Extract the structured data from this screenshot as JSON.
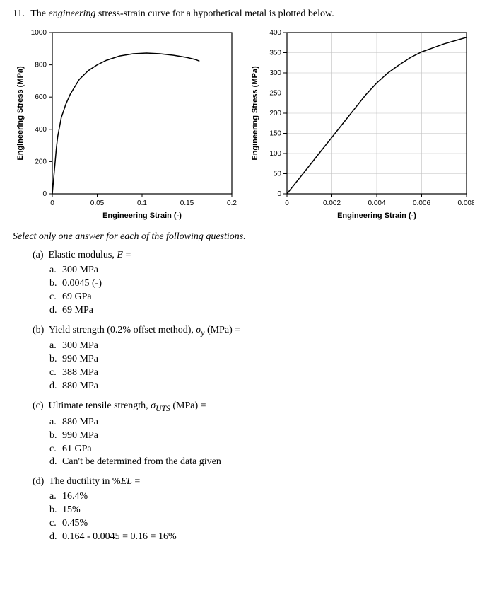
{
  "prompt": {
    "number": "11.",
    "pre": "The ",
    "emph": "engineering",
    "post": " stress-strain curve for a hypothetical metal is plotted below."
  },
  "instruction": "Select only one answer for each of the following questions.",
  "chart_left": {
    "type": "line",
    "x_label": "Engineering Strain (-)",
    "y_label": "Engineering Stress (MPa)",
    "x_ticks": [
      "0",
      "0.05",
      "0.1",
      "0.15",
      "0.2"
    ],
    "y_ticks": [
      "0",
      "200",
      "400",
      "600",
      "800",
      "1000"
    ],
    "xlim": [
      0,
      0.2
    ],
    "ylim": [
      0,
      1100
    ],
    "line_color": "#000000",
    "line_width": 1.5,
    "background_color": "#ffffff",
    "border_color": "#000000",
    "tick_font_size": 10,
    "label_font_size": 11,
    "data_points": [
      [
        0.0,
        0
      ],
      [
        0.0045,
        310
      ],
      [
        0.006,
        390
      ],
      [
        0.01,
        520
      ],
      [
        0.015,
        610
      ],
      [
        0.02,
        680
      ],
      [
        0.03,
        780
      ],
      [
        0.04,
        840
      ],
      [
        0.05,
        880
      ],
      [
        0.06,
        910
      ],
      [
        0.075,
        940
      ],
      [
        0.09,
        955
      ],
      [
        0.105,
        960
      ],
      [
        0.12,
        955
      ],
      [
        0.135,
        945
      ],
      [
        0.15,
        930
      ],
      [
        0.16,
        915
      ],
      [
        0.164,
        905
      ]
    ]
  },
  "chart_right": {
    "type": "line",
    "x_label": "Engineering Strain (-)",
    "y_label": "Engineering Stress (MPa)",
    "x_ticks": [
      "0",
      "0.002",
      "0.004",
      "0.006",
      "0.008"
    ],
    "y_ticks": [
      "0",
      "50",
      "100",
      "150",
      "200",
      "250",
      "300",
      "350",
      "400"
    ],
    "xlim": [
      0,
      0.008
    ],
    "ylim": [
      0,
      400
    ],
    "line_color": "#000000",
    "line_width": 1.5,
    "background_color": "#ffffff",
    "border_color": "#000000",
    "grid_color": "#bfbfbf",
    "tick_font_size": 10,
    "label_font_size": 11,
    "data_points": [
      [
        0.0,
        0
      ],
      [
        0.0005,
        35
      ],
      [
        0.001,
        70
      ],
      [
        0.0015,
        105
      ],
      [
        0.002,
        140
      ],
      [
        0.0025,
        175
      ],
      [
        0.003,
        210
      ],
      [
        0.0035,
        245
      ],
      [
        0.004,
        275
      ],
      [
        0.0045,
        300
      ],
      [
        0.005,
        320
      ],
      [
        0.0055,
        338
      ],
      [
        0.006,
        352
      ],
      [
        0.0065,
        362
      ],
      [
        0.007,
        372
      ],
      [
        0.0075,
        380
      ],
      [
        0.008,
        388
      ]
    ]
  },
  "questions": [
    {
      "label": "(a)",
      "text_pre": "Elastic modulus, ",
      "text_ital": "E",
      "text_post": " =",
      "options": [
        {
          "l": "a.",
          "t": "300 MPa"
        },
        {
          "l": "b.",
          "t": "0.0045 (-)"
        },
        {
          "l": "c.",
          "t": "69 GPa"
        },
        {
          "l": "d.",
          "t": "69 MPa"
        }
      ]
    },
    {
      "label": "(b)",
      "text_pre": "Yield strength (0.2% offset method), ",
      "text_ital": "σ",
      "text_sub": "y",
      "text_post": " (MPa) =",
      "options": [
        {
          "l": "a.",
          "t": "300 MPa"
        },
        {
          "l": "b.",
          "t": "990 MPa"
        },
        {
          "l": "c.",
          "t": "388 MPa"
        },
        {
          "l": "d.",
          "t": "880 MPa"
        }
      ]
    },
    {
      "label": "(c)",
      "text_pre": "Ultimate tensile strength, ",
      "text_ital": "σ",
      "text_sub": "UTS",
      "text_post": " (MPa) =",
      "options": [
        {
          "l": "a.",
          "t": "880 MPa"
        },
        {
          "l": "b.",
          "t": "990 MPa"
        },
        {
          "l": "c.",
          "t": "61 GPa"
        },
        {
          "l": "d.",
          "t": "Can't be determined from the data given"
        }
      ]
    },
    {
      "label": "(d)",
      "text_pre": "The ductility in %",
      "text_ital": "EL",
      "text_post": " =",
      "options": [
        {
          "l": "a.",
          "t": "16.4%"
        },
        {
          "l": "b.",
          "t": "15%"
        },
        {
          "l": "c.",
          "t": "0.45%"
        },
        {
          "l": "d.",
          "t": "0.164 - 0.0045 = 0.16 = 16%"
        }
      ]
    }
  ]
}
